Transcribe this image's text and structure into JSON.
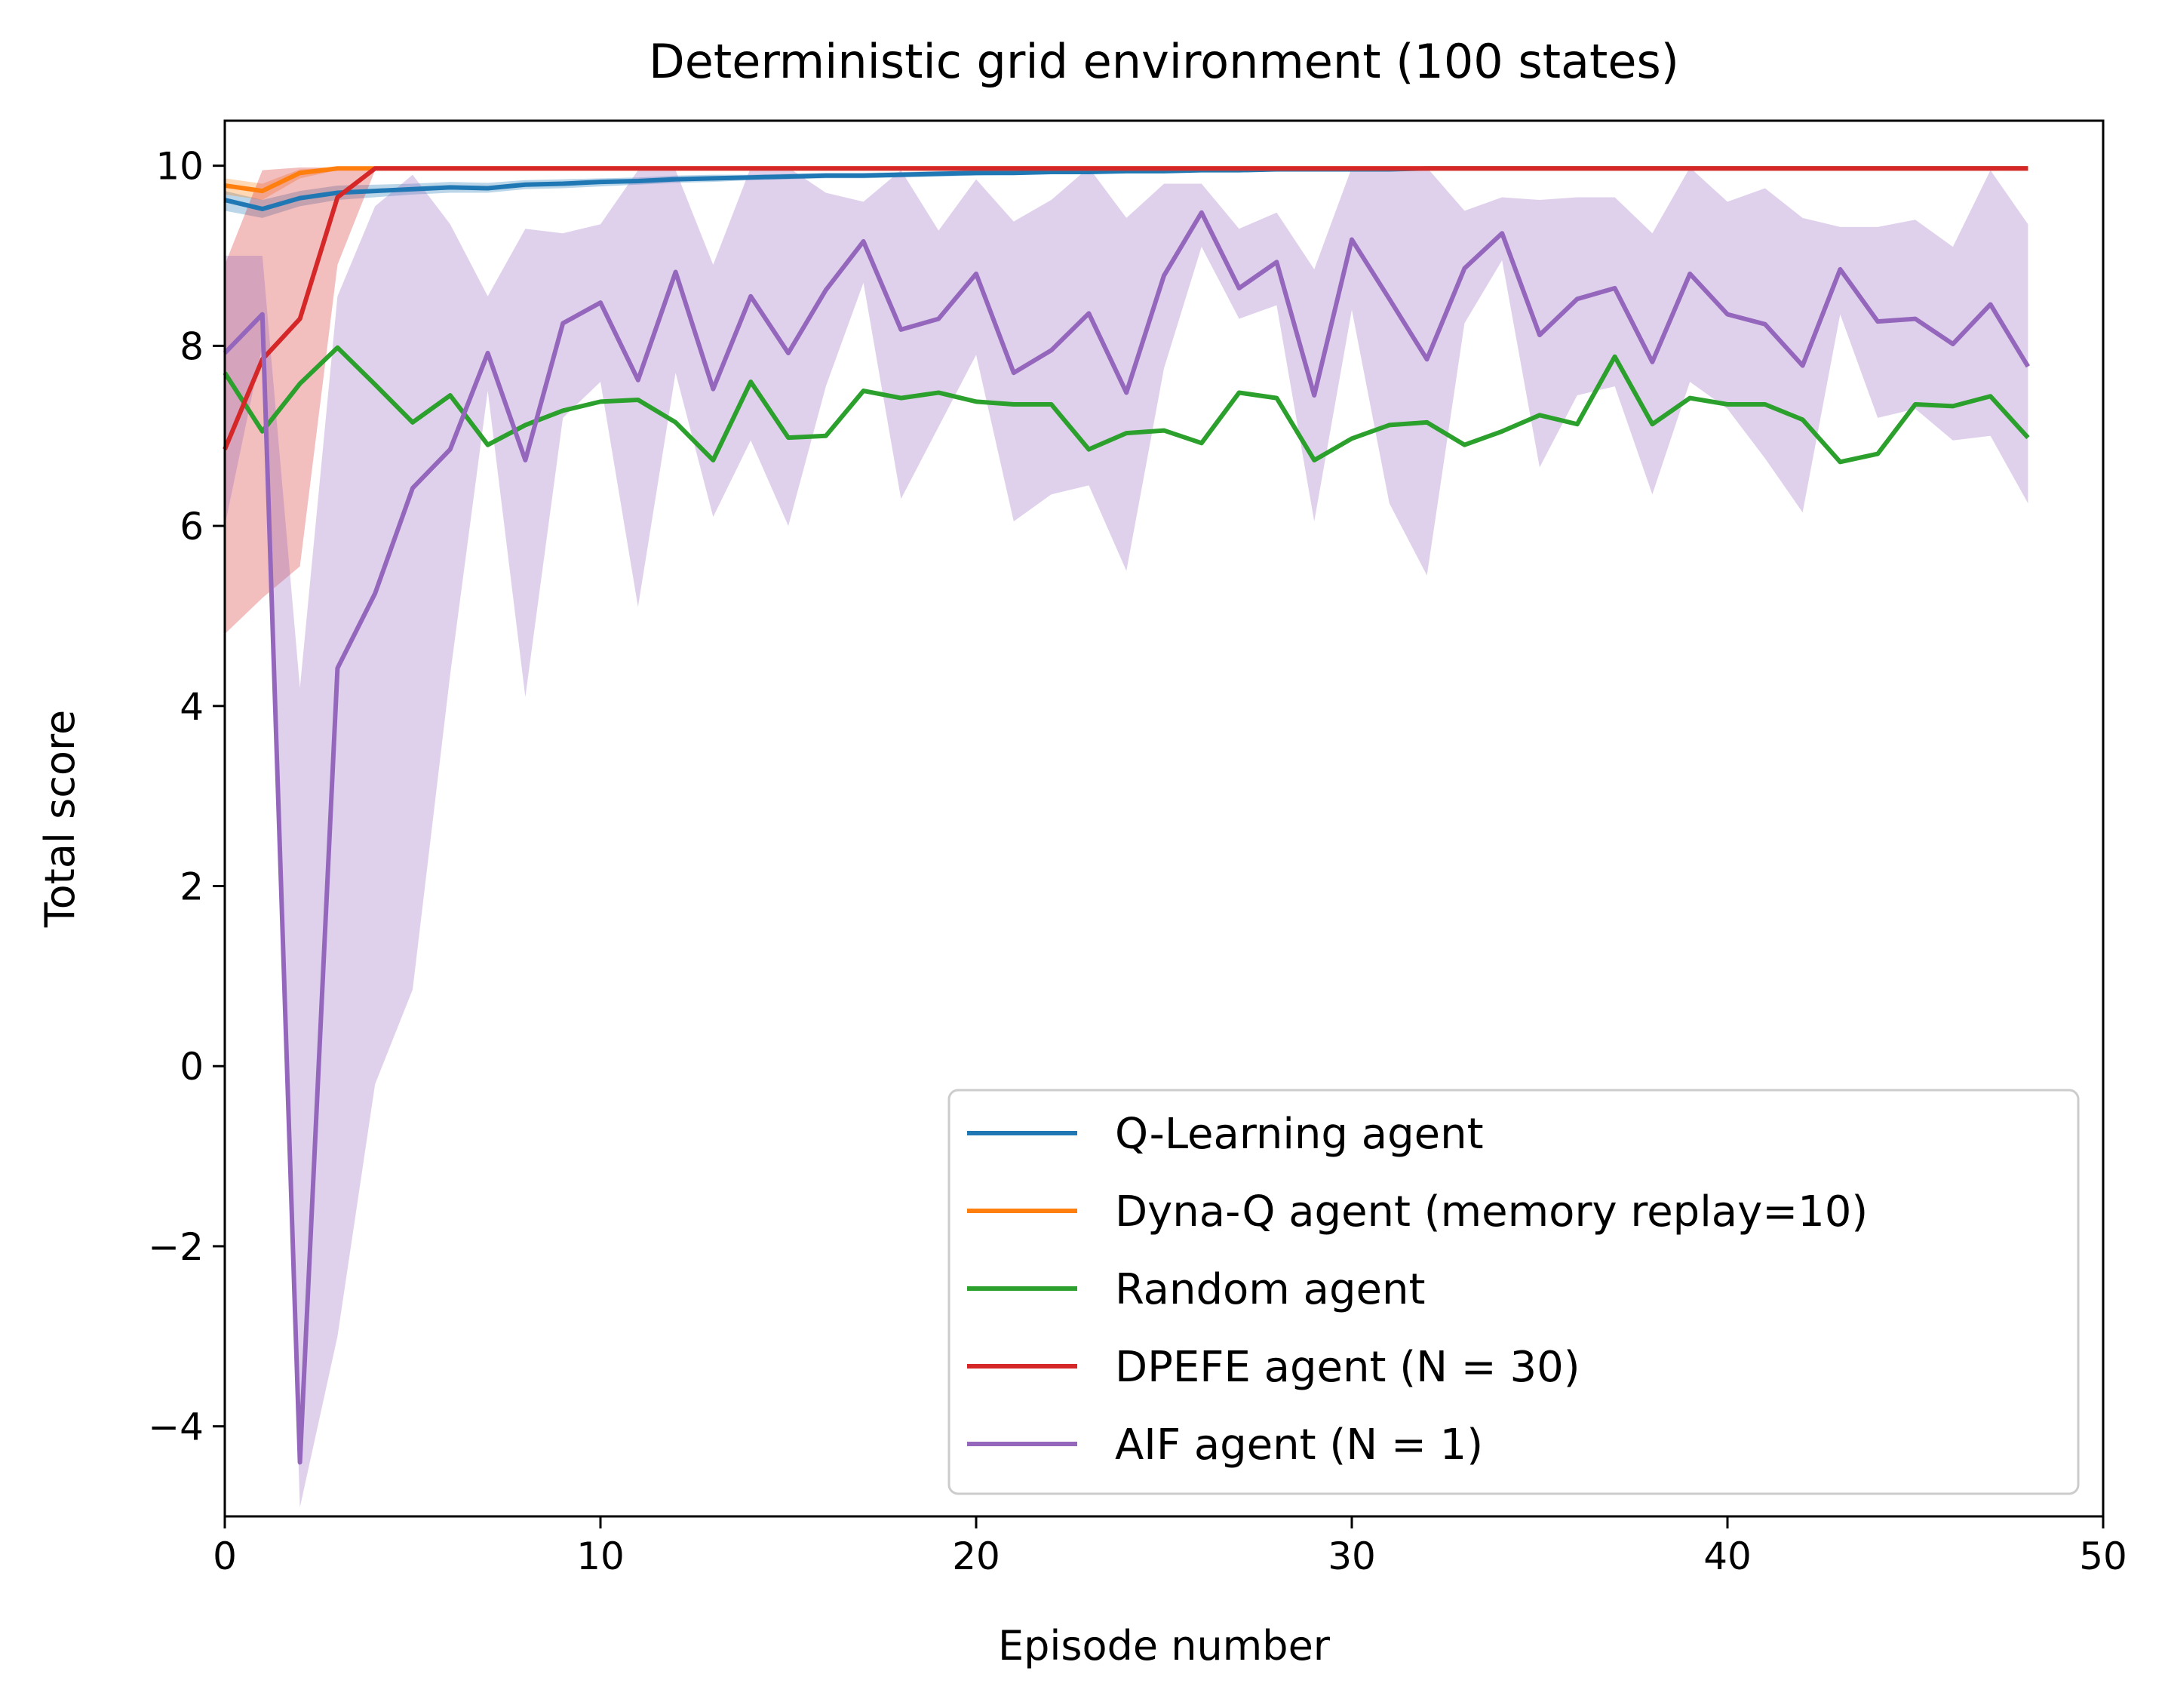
{
  "chart_data": {
    "type": "line",
    "title": "Deterministic grid environment (100 states)",
    "xlabel": "Episode number",
    "ylabel": "Total score",
    "xlim": [
      0,
      50
    ],
    "ylim": [
      -5,
      10.5
    ],
    "xticks": [
      0,
      10,
      20,
      30,
      40,
      50
    ],
    "yticks": [
      -4,
      -2,
      0,
      2,
      4,
      6,
      8,
      10
    ],
    "xtick_labels": [
      "0",
      "10",
      "20",
      "30",
      "40",
      "50"
    ],
    "ytick_labels": [
      "−4",
      "−2",
      "0",
      "2",
      "4",
      "6",
      "8",
      "10"
    ],
    "grid": false,
    "legend_position": "lower-right",
    "x": [
      0,
      1,
      2,
      3,
      4,
      5,
      6,
      7,
      8,
      9,
      10,
      11,
      12,
      13,
      14,
      15,
      16,
      17,
      18,
      19,
      20,
      21,
      22,
      23,
      24,
      25,
      26,
      27,
      28,
      29,
      30,
      31,
      32,
      33,
      34,
      35,
      36,
      37,
      38,
      39,
      40,
      41,
      42,
      43,
      44,
      45,
      46,
      47,
      48
    ],
    "series": [
      {
        "name": "Q-Learning agent",
        "color": "#1f77b4",
        "values": [
          9.62,
          9.52,
          9.64,
          9.7,
          9.72,
          9.74,
          9.76,
          9.75,
          9.79,
          9.8,
          9.82,
          9.83,
          9.85,
          9.86,
          9.87,
          9.88,
          9.89,
          9.89,
          9.9,
          9.91,
          9.92,
          9.92,
          9.93,
          9.93,
          9.94,
          9.94,
          9.95,
          9.95,
          9.96,
          9.96,
          9.96,
          9.96,
          9.97,
          9.97,
          9.97,
          9.97,
          9.97,
          9.97,
          9.97,
          9.97,
          9.97,
          9.97,
          9.97,
          9.97,
          9.97,
          9.97,
          9.97,
          9.97,
          9.97
        ],
        "band_lower": [
          9.5,
          9.42,
          9.55,
          9.62,
          9.65,
          9.68,
          9.7,
          9.7,
          9.74,
          9.75,
          9.77,
          9.79,
          9.81,
          9.82,
          9.84,
          9.85,
          9.86,
          9.86,
          9.87,
          9.88,
          9.89,
          9.9,
          9.91,
          9.91,
          9.92,
          9.92,
          9.93,
          9.93,
          9.94,
          9.94,
          9.95,
          9.95,
          9.96,
          9.96,
          9.96,
          9.96,
          9.96,
          9.96,
          9.96,
          9.96,
          9.96,
          9.96,
          9.96,
          9.96,
          9.96,
          9.96,
          9.96,
          9.96,
          9.96
        ],
        "band_upper": [
          9.72,
          9.62,
          9.72,
          9.78,
          9.79,
          9.8,
          9.82,
          9.81,
          9.84,
          9.85,
          9.86,
          9.87,
          9.89,
          9.9,
          9.9,
          9.91,
          9.92,
          9.92,
          9.93,
          9.94,
          9.95,
          9.95,
          9.95,
          9.95,
          9.96,
          9.96,
          9.97,
          9.97,
          9.98,
          9.98,
          9.98,
          9.98,
          9.98,
          9.98,
          9.98,
          9.98,
          9.98,
          9.98,
          9.98,
          9.98,
          9.98,
          9.98,
          9.98,
          9.98,
          9.98,
          9.98,
          9.98,
          9.98,
          9.98
        ]
      },
      {
        "name": "Dyna-Q agent (memory replay=10)",
        "color": "#ff7f0e",
        "values": [
          9.78,
          9.72,
          9.92,
          9.97,
          9.97,
          9.97,
          9.97,
          9.97,
          9.97,
          9.97,
          9.97,
          9.97,
          9.97,
          9.97,
          9.97,
          9.97,
          9.97,
          9.97,
          9.97,
          9.97,
          9.97,
          9.97,
          9.97,
          9.97,
          9.97,
          9.97,
          9.97,
          9.97,
          9.97,
          9.97,
          9.97,
          9.97,
          9.97,
          9.97,
          9.97,
          9.97,
          9.97,
          9.97,
          9.97,
          9.97,
          9.97,
          9.97,
          9.97,
          9.97,
          9.97,
          9.97,
          9.97,
          9.97,
          9.97
        ],
        "band_lower": [
          9.68,
          9.62,
          9.86,
          9.95,
          9.96,
          9.96,
          9.96,
          9.96,
          9.96,
          9.96,
          9.96,
          9.96,
          9.96,
          9.96,
          9.96,
          9.96,
          9.96,
          9.96,
          9.96,
          9.96,
          9.96,
          9.96,
          9.96,
          9.96,
          9.96,
          9.96,
          9.96,
          9.96,
          9.96,
          9.96,
          9.96,
          9.96,
          9.96,
          9.96,
          9.96,
          9.96,
          9.96,
          9.96,
          9.96,
          9.96,
          9.96,
          9.96,
          9.96,
          9.96,
          9.96,
          9.96,
          9.96,
          9.96,
          9.96
        ],
        "band_upper": [
          9.86,
          9.8,
          9.96,
          9.98,
          9.98,
          9.98,
          9.98,
          9.98,
          9.98,
          9.98,
          9.98,
          9.98,
          9.98,
          9.98,
          9.98,
          9.98,
          9.98,
          9.98,
          9.98,
          9.98,
          9.98,
          9.98,
          9.98,
          9.98,
          9.98,
          9.98,
          9.98,
          9.98,
          9.98,
          9.98,
          9.98,
          9.98,
          9.98,
          9.98,
          9.98,
          9.98,
          9.98,
          9.98,
          9.98,
          9.98,
          9.98,
          9.98,
          9.98,
          9.98,
          9.98,
          9.98,
          9.98,
          9.98,
          9.98
        ]
      },
      {
        "name": "Random agent",
        "color": "#2ca02c",
        "values": [
          7.7,
          7.05,
          7.58,
          7.98,
          7.57,
          7.15,
          7.45,
          6.9,
          7.12,
          7.28,
          7.38,
          7.4,
          7.15,
          6.73,
          7.6,
          6.98,
          7.0,
          7.5,
          7.42,
          7.48,
          7.38,
          7.35,
          7.35,
          6.85,
          7.03,
          7.06,
          6.92,
          7.48,
          7.42,
          6.73,
          6.97,
          7.12,
          7.15,
          6.9,
          7.05,
          7.23,
          7.13,
          7.88,
          7.13,
          7.42,
          7.35,
          7.35,
          7.18,
          6.71,
          6.8,
          7.35,
          7.33,
          7.44,
          6.98
        ]
      },
      {
        "name": "DPEFE agent (N = 30)",
        "color": "#d62728",
        "values": [
          6.85,
          7.85,
          8.3,
          9.65,
          9.97,
          9.97,
          9.97,
          9.97,
          9.97,
          9.97,
          9.97,
          9.97,
          9.97,
          9.97,
          9.97,
          9.97,
          9.97,
          9.97,
          9.97,
          9.97,
          9.97,
          9.97,
          9.97,
          9.97,
          9.97,
          9.97,
          9.97,
          9.97,
          9.97,
          9.97,
          9.97,
          9.97,
          9.97,
          9.97,
          9.97,
          9.97,
          9.97,
          9.97,
          9.97,
          9.97,
          9.97,
          9.97,
          9.97,
          9.97,
          9.97,
          9.97,
          9.97,
          9.97,
          9.97
        ],
        "band_lower": [
          4.8,
          5.2,
          5.55,
          8.9,
          9.95,
          9.96,
          9.96,
          9.96,
          9.96,
          9.96,
          9.96,
          9.96,
          9.96,
          9.96,
          9.96,
          9.96,
          9.96,
          9.96,
          9.96,
          9.96,
          9.96,
          9.96,
          9.96,
          9.96,
          9.96,
          9.96,
          9.96,
          9.96,
          9.96,
          9.96,
          9.96,
          9.96,
          9.96,
          9.96,
          9.96,
          9.96,
          9.96,
          9.96,
          9.96,
          9.96,
          9.96,
          9.96,
          9.96,
          9.96,
          9.96,
          9.96,
          9.96,
          9.96,
          9.96
        ],
        "band_upper": [
          8.9,
          9.95,
          9.98,
          9.98,
          9.98,
          9.98,
          9.98,
          9.98,
          9.98,
          9.98,
          9.98,
          9.98,
          9.98,
          9.98,
          9.98,
          9.98,
          9.98,
          9.98,
          9.98,
          9.98,
          9.98,
          9.98,
          9.98,
          9.98,
          9.98,
          9.98,
          9.98,
          9.98,
          9.98,
          9.98,
          9.98,
          9.98,
          9.98,
          9.98,
          9.98,
          9.98,
          9.98,
          9.98,
          9.98,
          9.98,
          9.98,
          9.98,
          9.98,
          9.98,
          9.98,
          9.98,
          9.98,
          9.98,
          9.98
        ]
      },
      {
        "name": "AIF agent (N = 1)",
        "color": "#9467bd",
        "values": [
          7.92,
          8.35,
          -4.4,
          4.42,
          5.25,
          6.42,
          6.85,
          7.92,
          6.73,
          8.25,
          8.48,
          7.62,
          8.82,
          7.52,
          8.55,
          7.92,
          8.62,
          9.16,
          8.18,
          8.3,
          8.8,
          7.7,
          7.95,
          8.36,
          7.48,
          8.78,
          9.48,
          8.64,
          8.93,
          7.45,
          9.18,
          8.52,
          7.85,
          8.86,
          9.25,
          8.12,
          8.52,
          8.64,
          7.82,
          8.8,
          8.35,
          8.24,
          7.78,
          8.85,
          8.27,
          8.3,
          8.02,
          8.46,
          7.77
        ],
        "band_lower": [
          6.0,
          8.0,
          -4.9,
          -3.0,
          -0.2,
          0.85,
          4.35,
          7.5,
          4.1,
          7.2,
          7.6,
          5.1,
          7.7,
          6.1,
          6.95,
          6.0,
          7.55,
          8.7,
          6.3,
          7.1,
          7.9,
          6.05,
          6.35,
          6.45,
          5.5,
          7.75,
          9.1,
          8.3,
          8.45,
          6.05,
          8.4,
          6.25,
          5.45,
          8.25,
          8.95,
          6.65,
          7.45,
          7.55,
          6.35,
          7.6,
          7.3,
          6.75,
          6.15,
          8.35,
          7.2,
          7.3,
          6.95,
          7.0,
          6.25
        ],
        "band_upper": [
          9.0,
          9.0,
          4.2,
          8.55,
          9.55,
          9.9,
          9.35,
          8.55,
          9.3,
          9.25,
          9.35,
          9.95,
          9.95,
          8.9,
          9.98,
          9.98,
          9.7,
          9.6,
          9.95,
          9.28,
          9.85,
          9.38,
          9.62,
          9.98,
          9.42,
          9.8,
          9.8,
          9.3,
          9.48,
          8.85,
          9.98,
          9.98,
          9.98,
          9.5,
          9.65,
          9.62,
          9.65,
          9.65,
          9.25,
          9.98,
          9.6,
          9.75,
          9.42,
          9.32,
          9.32,
          9.4,
          9.1,
          9.95,
          9.35
        ]
      }
    ]
  }
}
